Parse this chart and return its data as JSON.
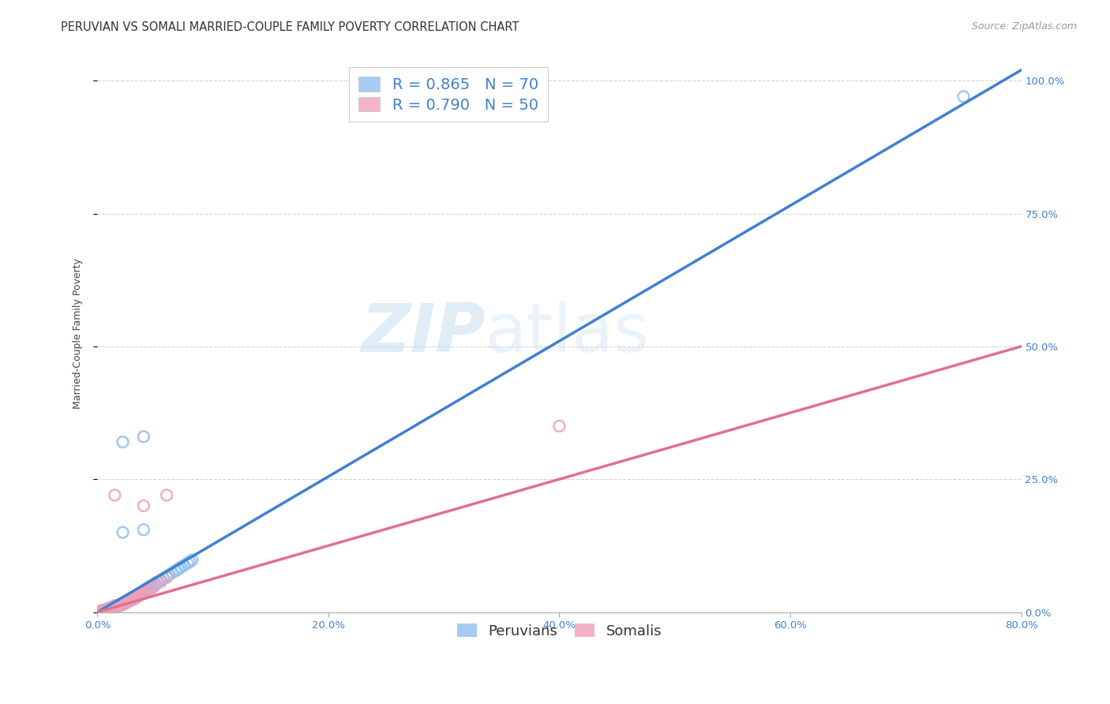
{
  "title": "PERUVIAN VS SOMALI MARRIED-COUPLE FAMILY POVERTY CORRELATION CHART",
  "source": "Source: ZipAtlas.com",
  "xlim": [
    0.0,
    0.8
  ],
  "ylim": [
    0.0,
    1.05
  ],
  "ylabel": "Married-Couple Family Poverty",
  "watermark_zip": "ZIP",
  "watermark_atlas": "atlas",
  "blue_R": 0.865,
  "blue_N": 70,
  "pink_R": 0.79,
  "pink_N": 50,
  "blue_color": "#90C0F0",
  "pink_color": "#F0A0B8",
  "blue_line_color": "#4080D0",
  "pink_line_color": "#E07090",
  "pink_dash_color": "#C0C0C0",
  "grid_color": "#C8C8C8",
  "background_color": "#FFFFFF",
  "title_fontsize": 10.5,
  "axis_label_fontsize": 9,
  "tick_fontsize": 9.5,
  "legend_fontsize": 14,
  "source_fontsize": 9,
  "blue_scatter_x": [
    0.005,
    0.008,
    0.01,
    0.01,
    0.012,
    0.013,
    0.015,
    0.015,
    0.016,
    0.018,
    0.02,
    0.02,
    0.022,
    0.022,
    0.023,
    0.025,
    0.025,
    0.026,
    0.027,
    0.028,
    0.03,
    0.03,
    0.031,
    0.033,
    0.034,
    0.035,
    0.036,
    0.037,
    0.038,
    0.04,
    0.04,
    0.042,
    0.043,
    0.045,
    0.046,
    0.048,
    0.05,
    0.052,
    0.055,
    0.057,
    0.06,
    0.062,
    0.065,
    0.068,
    0.07,
    0.072,
    0.075,
    0.078,
    0.08,
    0.082,
    0.003,
    0.004,
    0.005,
    0.006,
    0.006,
    0.007,
    0.008,
    0.009,
    0.01,
    0.011,
    0.012,
    0.013,
    0.014,
    0.015,
    0.005,
    0.022,
    0.04,
    0.022,
    0.04,
    0.75
  ],
  "blue_scatter_y": [
    0.003,
    0.005,
    0.006,
    0.008,
    0.007,
    0.009,
    0.01,
    0.012,
    0.011,
    0.013,
    0.012,
    0.015,
    0.014,
    0.016,
    0.015,
    0.018,
    0.02,
    0.019,
    0.021,
    0.022,
    0.023,
    0.026,
    0.025,
    0.028,
    0.03,
    0.031,
    0.033,
    0.035,
    0.036,
    0.038,
    0.04,
    0.043,
    0.044,
    0.047,
    0.049,
    0.051,
    0.054,
    0.057,
    0.06,
    0.063,
    0.067,
    0.07,
    0.074,
    0.078,
    0.081,
    0.084,
    0.088,
    0.092,
    0.095,
    0.098,
    0.002,
    0.003,
    0.003,
    0.004,
    0.003,
    0.004,
    0.005,
    0.005,
    0.004,
    0.006,
    0.005,
    0.006,
    0.005,
    0.007,
    0.002,
    0.15,
    0.155,
    0.32,
    0.33,
    0.97
  ],
  "pink_scatter_x": [
    0.004,
    0.006,
    0.008,
    0.01,
    0.01,
    0.012,
    0.014,
    0.015,
    0.016,
    0.018,
    0.02,
    0.021,
    0.022,
    0.023,
    0.025,
    0.026,
    0.028,
    0.03,
    0.032,
    0.033,
    0.035,
    0.036,
    0.038,
    0.04,
    0.042,
    0.045,
    0.048,
    0.05,
    0.055,
    0.06,
    0.003,
    0.004,
    0.005,
    0.006,
    0.006,
    0.007,
    0.008,
    0.009,
    0.01,
    0.011,
    0.012,
    0.013,
    0.014,
    0.015,
    0.016,
    0.017,
    0.015,
    0.4,
    0.04,
    0.06
  ],
  "pink_scatter_y": [
    0.003,
    0.004,
    0.005,
    0.006,
    0.007,
    0.008,
    0.009,
    0.01,
    0.011,
    0.012,
    0.013,
    0.014,
    0.015,
    0.016,
    0.018,
    0.019,
    0.021,
    0.023,
    0.025,
    0.027,
    0.029,
    0.031,
    0.033,
    0.036,
    0.038,
    0.042,
    0.046,
    0.05,
    0.057,
    0.065,
    0.002,
    0.003,
    0.003,
    0.004,
    0.003,
    0.004,
    0.004,
    0.005,
    0.005,
    0.006,
    0.006,
    0.007,
    0.007,
    0.008,
    0.009,
    0.01,
    0.22,
    0.35,
    0.2,
    0.22
  ]
}
